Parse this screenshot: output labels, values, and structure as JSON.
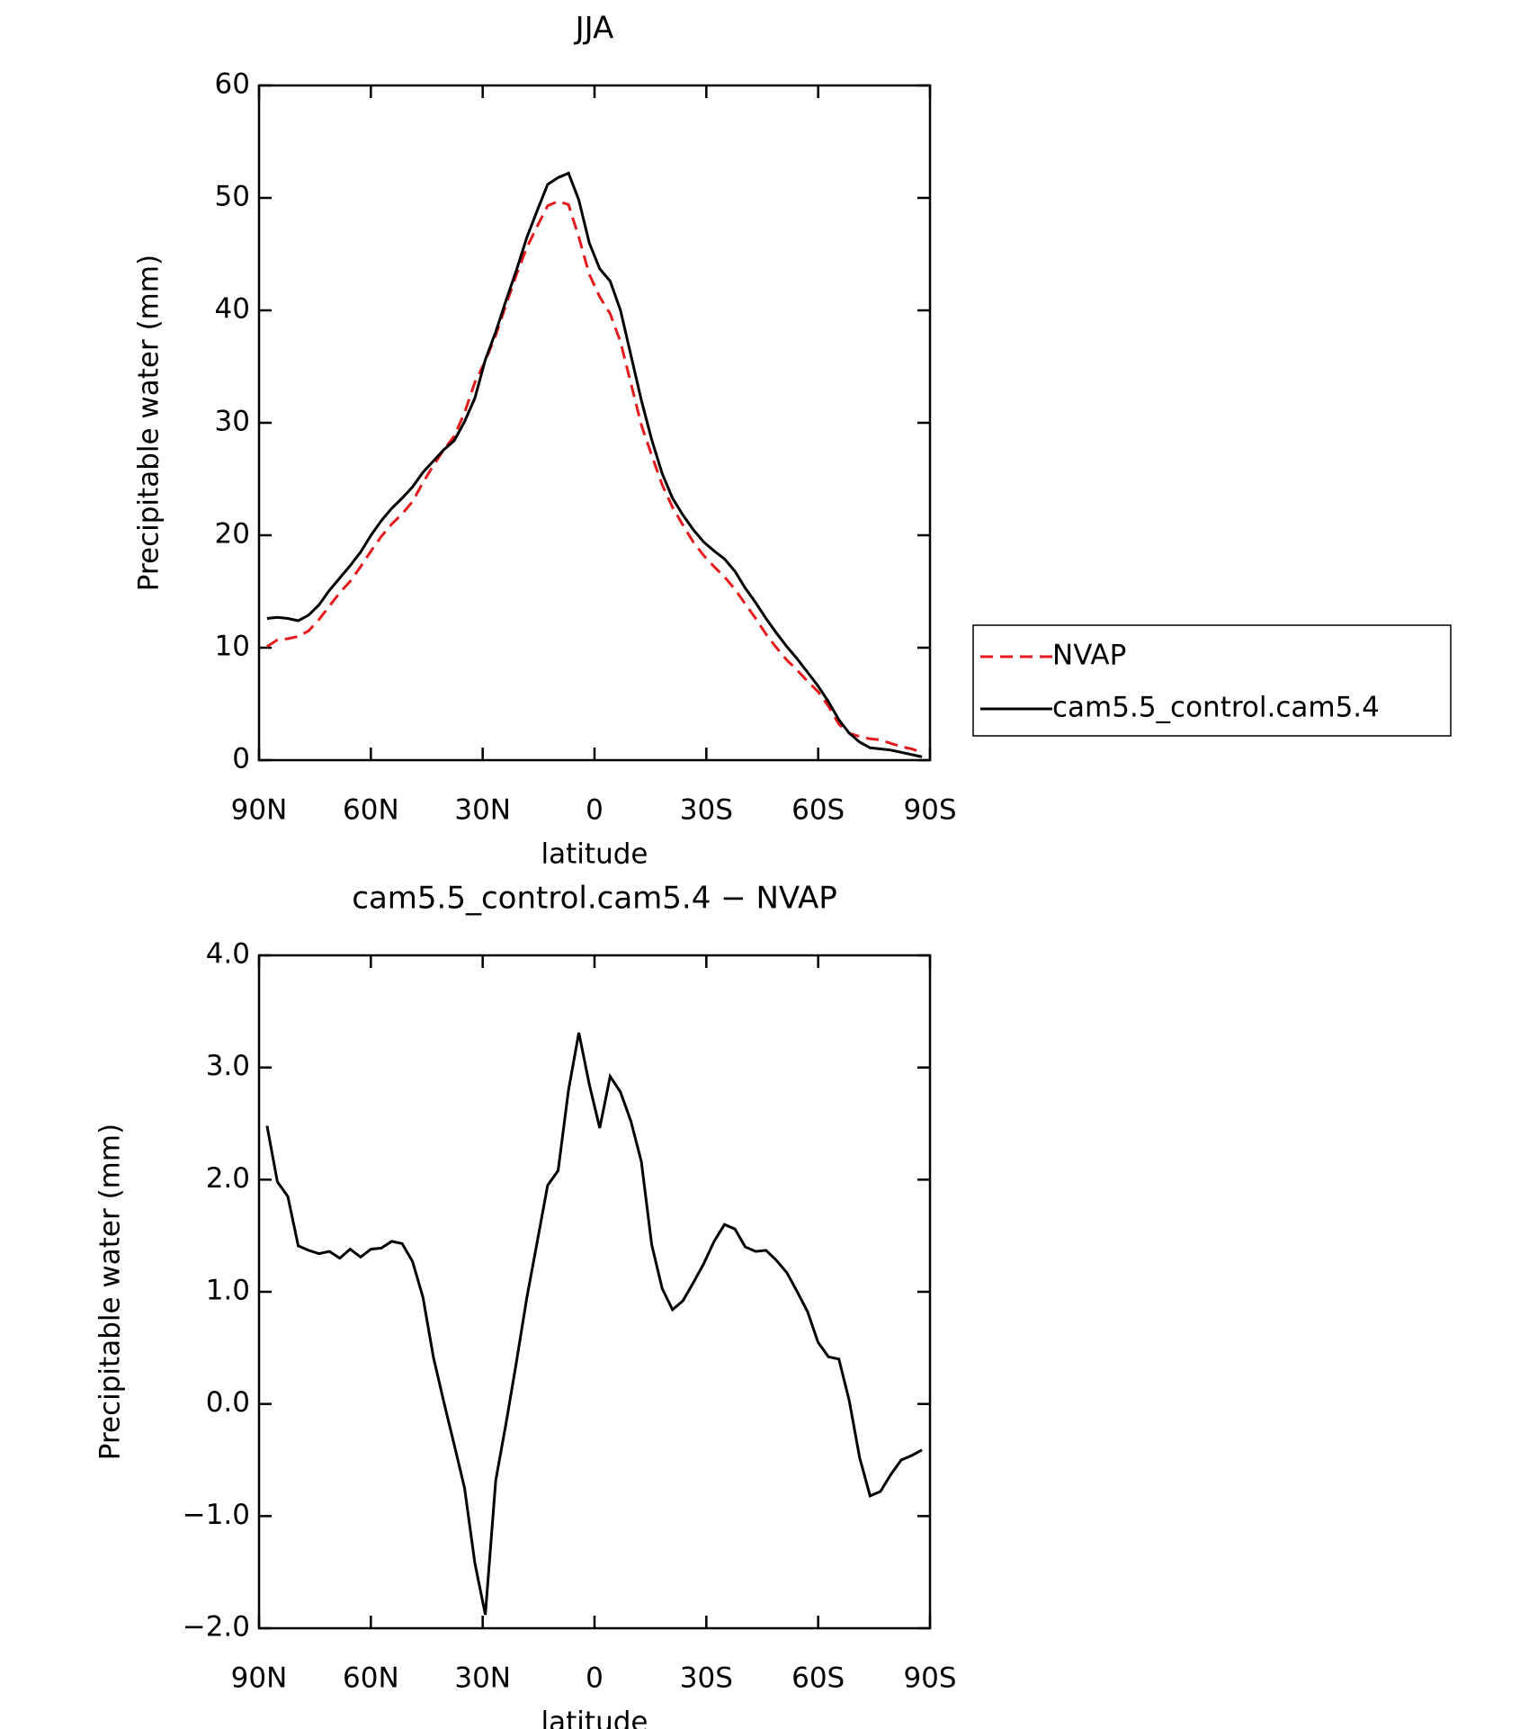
{
  "chart_data": [
    {
      "type": "line",
      "title": "JJA",
      "xlabel": "latitude",
      "ylabel": "Precipitable water (mm)",
      "x": [
        87.86,
        85.07,
        82.28,
        79.49,
        76.7,
        73.92,
        71.13,
        68.34,
        65.55,
        62.76,
        59.97,
        57.18,
        54.39,
        51.6,
        48.81,
        46.02,
        43.24,
        40.45,
        37.66,
        34.87,
        32.08,
        29.29,
        26.5,
        23.71,
        20.92,
        18.14,
        15.35,
        12.56,
        9.77,
        6.98,
        4.19,
        1.4,
        -1.4,
        -4.19,
        -6.98,
        -9.77,
        -12.56,
        -15.35,
        -18.14,
        -20.92,
        -23.71,
        -26.5,
        -29.29,
        -32.08,
        -34.87,
        -37.66,
        -40.45,
        -43.24,
        -46.02,
        -48.81,
        -51.6,
        -54.39,
        -57.18,
        -59.97,
        -62.76,
        -65.55,
        -68.34,
        -71.13,
        -73.92,
        -76.7,
        -79.49,
        -82.28,
        -85.07,
        -87.86
      ],
      "series": [
        {
          "name": "NVAP",
          "color": "#e41a1c",
          "style": "dashed",
          "values": [
            10.1,
            10.7,
            10.8,
            11.0,
            11.5,
            12.5,
            13.7,
            14.9,
            15.9,
            17.2,
            18.6,
            19.9,
            21.0,
            21.9,
            23.0,
            24.7,
            26.2,
            27.6,
            28.8,
            30.9,
            33.6,
            35.5,
            37.8,
            40.5,
            43.2,
            45.6,
            47.5,
            49.3,
            49.7,
            49.4,
            46.5,
            43.2,
            41.2,
            39.7,
            37.2,
            33.5,
            29.8,
            27.1,
            24.5,
            22.5,
            20.9,
            19.4,
            18.2,
            17.2,
            16.3,
            15.2,
            13.9,
            12.6,
            11.2,
            10.0,
            8.9,
            8.0,
            7.0,
            6.1,
            4.8,
            3.2,
            2.4,
            2.1,
            1.9,
            1.8,
            1.5,
            1.2,
            1.0,
            0.7
          ]
        },
        {
          "name": "cam5.5_control.cam5.4",
          "color": "#000000",
          "style": "solid",
          "values": [
            12.6,
            12.7,
            12.6,
            12.4,
            12.9,
            13.8,
            15.1,
            16.2,
            17.3,
            18.5,
            20.0,
            21.3,
            22.4,
            23.3,
            24.3,
            25.6,
            26.6,
            27.6,
            28.4,
            30.1,
            32.2,
            35.6,
            38.1,
            40.9,
            43.6,
            46.5,
            48.9,
            51.2,
            51.8,
            52.2,
            49.8,
            46.0,
            43.7,
            42.6,
            40.0,
            36.0,
            32.0,
            28.5,
            25.5,
            23.3,
            21.8,
            20.5,
            19.4,
            18.6,
            17.9,
            16.8,
            15.3,
            14.0,
            12.6,
            11.3,
            10.1,
            9.0,
            7.8,
            6.6,
            5.2,
            3.6,
            2.4,
            1.6,
            1.1,
            1.0,
            0.9,
            0.7,
            0.5,
            0.3
          ]
        }
      ],
      "xlim": [
        90,
        -90
      ],
      "xticks": [
        {
          "value": 90,
          "label": "90N"
        },
        {
          "value": 60,
          "label": "60N"
        },
        {
          "value": 30,
          "label": "30N"
        },
        0,
        {
          "value": -30,
          "label": "30S"
        },
        {
          "value": -60,
          "label": "60S"
        },
        {
          "value": -90,
          "label": "90S"
        }
      ],
      "ylim": [
        0,
        60
      ],
      "yticks": [
        0,
        10,
        20,
        30,
        40,
        50,
        60
      ],
      "legend": "right"
    },
    {
      "type": "line",
      "title": "cam5.5_control.cam5.4 − NVAP",
      "xlabel": "latitude",
      "ylabel": "Precipitable water (mm)",
      "x": [
        87.86,
        85.07,
        82.28,
        79.49,
        76.7,
        73.92,
        71.13,
        68.34,
        65.55,
        62.76,
        59.97,
        57.18,
        54.39,
        51.6,
        48.81,
        46.02,
        43.24,
        40.45,
        37.66,
        34.87,
        32.08,
        29.29,
        26.5,
        23.71,
        20.92,
        18.14,
        15.35,
        12.56,
        9.77,
        6.98,
        4.19,
        1.4,
        -1.4,
        -4.19,
        -6.98,
        -9.77,
        -12.56,
        -15.35,
        -18.14,
        -20.92,
        -23.71,
        -26.5,
        -29.29,
        -32.08,
        -34.87,
        -37.66,
        -40.45,
        -43.24,
        -46.02,
        -48.81,
        -51.6,
        -54.39,
        -57.18,
        -59.97,
        -62.76,
        -65.55,
        -68.34,
        -71.13,
        -73.92,
        -76.7,
        -79.49,
        -82.28,
        -85.07,
        -87.86
      ],
      "color": "#000000",
      "values": [
        2.48,
        1.98,
        1.85,
        1.41,
        1.37,
        1.34,
        1.36,
        1.3,
        1.38,
        1.31,
        1.38,
        1.39,
        1.45,
        1.43,
        1.27,
        0.95,
        0.42,
        0.02,
        -0.36,
        -0.75,
        -1.42,
        -1.88,
        -0.68,
        -0.17,
        0.38,
        0.95,
        1.45,
        1.95,
        2.08,
        2.8,
        3.31,
        2.85,
        2.46,
        2.92,
        2.78,
        2.52,
        2.16,
        1.42,
        1.03,
        0.84,
        0.92,
        1.08,
        1.25,
        1.45,
        1.6,
        1.56,
        1.4,
        1.36,
        1.37,
        1.28,
        1.17,
        1.0,
        0.82,
        0.55,
        0.42,
        0.4,
        0.03,
        -0.48,
        -0.82,
        -0.78,
        -0.63,
        -0.5,
        -0.46,
        -0.41
      ],
      "xlim": [
        90,
        -90
      ],
      "xticks": [
        {
          "value": 90,
          "label": "90N"
        },
        {
          "value": 60,
          "label": "60N"
        },
        {
          "value": 30,
          "label": "30N"
        },
        0,
        {
          "value": -30,
          "label": "30S"
        },
        {
          "value": -60,
          "label": "60S"
        },
        {
          "value": -90,
          "label": "90S"
        }
      ],
      "ylim": [
        -2,
        4
      ],
      "yticks": [
        {
          "value": -2,
          "label": "−2.0"
        },
        {
          "value": -1,
          "label": "−1.0"
        },
        {
          "value": 0,
          "label": "0.0"
        },
        {
          "value": 1,
          "label": "1.0"
        },
        {
          "value": 2,
          "label": "2.0"
        },
        {
          "value": 3,
          "label": "3.0"
        },
        {
          "value": 4,
          "label": "4.0"
        }
      ]
    }
  ]
}
